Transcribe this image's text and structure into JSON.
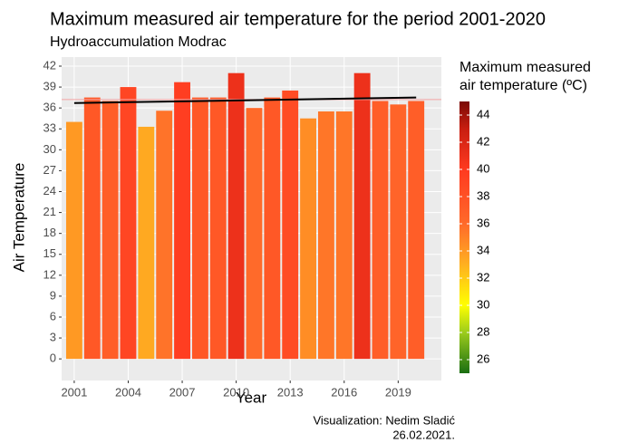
{
  "chart_data": {
    "type": "bar",
    "title": "Maximum measured air temperature for the period 2001-2020",
    "subtitle": "Hydroaccumulation Modrac",
    "x_label": "Year",
    "y_label": "Air Temperature",
    "caption": [
      "Visualization: Nedim Sladić",
      "26.02.2021."
    ],
    "x": [
      2001,
      2002,
      2003,
      2004,
      2005,
      2006,
      2007,
      2008,
      2009,
      2010,
      2011,
      2012,
      2013,
      2014,
      2015,
      2016,
      2017,
      2018,
      2019,
      2020
    ],
    "values": [
      34.0,
      37.5,
      37.0,
      39.0,
      33.3,
      35.6,
      39.7,
      37.5,
      37.5,
      41.0,
      36.0,
      37.5,
      38.5,
      34.5,
      35.5,
      35.5,
      41.0,
      37.0,
      36.5,
      37.0
    ],
    "xlim": [
      2000.3,
      2021.4
    ],
    "xticks": [
      2001,
      2004,
      2007,
      2010,
      2013,
      2016,
      2019
    ],
    "ylim": [
      -3.1,
      43.3
    ],
    "yticks": [
      0,
      3,
      6,
      9,
      12,
      15,
      18,
      21,
      24,
      27,
      30,
      33,
      36,
      39,
      42
    ],
    "grid": true,
    "mean_line": {
      "value": 37.2,
      "color": "#f4a3a3"
    },
    "trend": {
      "x": [
        2001,
        2020
      ],
      "values": [
        36.7,
        37.5
      ],
      "color": "#000000"
    },
    "legend": {
      "title": [
        "Maximum measured",
        "air temperature (ºC)"
      ],
      "limits": [
        25,
        45
      ],
      "ticks": [
        26,
        28,
        30,
        32,
        34,
        36,
        38,
        40,
        42,
        44
      ],
      "stops": [
        [
          25,
          "#1a6e12"
        ],
        [
          28,
          "#9ccc1c"
        ],
        [
          30,
          "#ffff00"
        ],
        [
          33,
          "#ffb020"
        ],
        [
          36,
          "#ff6a2a"
        ],
        [
          40,
          "#ff3a20"
        ],
        [
          43,
          "#c81e10"
        ],
        [
          45,
          "#7a0a05"
        ]
      ]
    }
  }
}
